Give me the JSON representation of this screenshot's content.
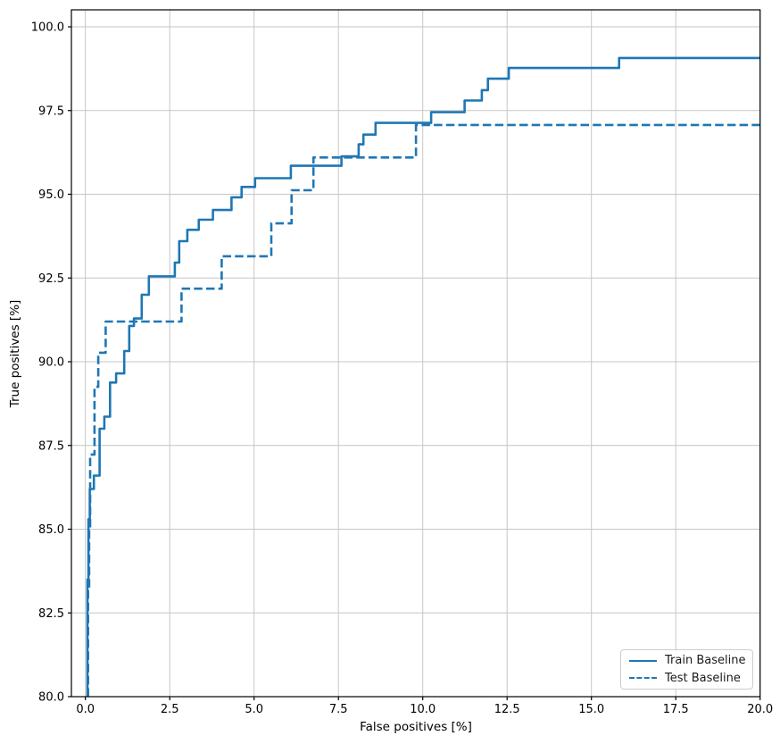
{
  "figure": {
    "background": "#ffffff"
  },
  "colors": {
    "line": "#1f77b4",
    "grid": "#c6c6c6",
    "spine": "#000000",
    "tick_text": "#000000",
    "legend_border": "#cccccc"
  },
  "chart_data": {
    "type": "line",
    "subtype": "step-roc",
    "title": "",
    "xlabel": "False positives [%]",
    "ylabel": "True positives [%]",
    "xlim": [
      -0.42,
      20.0
    ],
    "ylim": [
      80.0,
      100.5
    ],
    "grid": true,
    "legend_location": "lower right",
    "x_tick_values": [
      0,
      2.5,
      5,
      7.5,
      10,
      12.5,
      15,
      17.5,
      20
    ],
    "x_tick_labels": [
      "0.0",
      "2.5",
      "5.0",
      "7.5",
      "10.0",
      "12.5",
      "15.0",
      "17.5",
      "20.0"
    ],
    "y_tick_values": [
      80,
      82.5,
      85,
      87.5,
      90,
      92.5,
      95,
      97.5,
      100
    ],
    "y_tick_labels": [
      "80.0",
      "82.5",
      "85.0",
      "87.5",
      "90.0",
      "92.5",
      "95.0",
      "97.5",
      "100.0"
    ],
    "series": [
      {
        "name": "Train Baseline",
        "style": "solid",
        "color": "#1f77b4",
        "points": [
          [
            0.06,
            80.0
          ],
          [
            0.06,
            83.5
          ],
          [
            0.09,
            83.5
          ],
          [
            0.09,
            85.3
          ],
          [
            0.13,
            85.3
          ],
          [
            0.13,
            86.2
          ],
          [
            0.25,
            86.2
          ],
          [
            0.25,
            86.6
          ],
          [
            0.42,
            86.6
          ],
          [
            0.42,
            88.0
          ],
          [
            0.56,
            88.0
          ],
          [
            0.56,
            88.36
          ],
          [
            0.73,
            88.36
          ],
          [
            0.73,
            89.38
          ],
          [
            0.91,
            89.38
          ],
          [
            0.91,
            89.65
          ],
          [
            1.15,
            89.65
          ],
          [
            1.15,
            90.32
          ],
          [
            1.3,
            90.32
          ],
          [
            1.3,
            91.07
          ],
          [
            1.44,
            91.07
          ],
          [
            1.44,
            91.29
          ],
          [
            1.67,
            91.29
          ],
          [
            1.67,
            92.0
          ],
          [
            1.88,
            92.0
          ],
          [
            1.88,
            92.55
          ],
          [
            2.65,
            92.55
          ],
          [
            2.65,
            92.96
          ],
          [
            2.78,
            92.96
          ],
          [
            2.78,
            93.6
          ],
          [
            3.02,
            93.6
          ],
          [
            3.02,
            93.94
          ],
          [
            3.36,
            93.94
          ],
          [
            3.36,
            94.24
          ],
          [
            3.78,
            94.24
          ],
          [
            3.78,
            94.53
          ],
          [
            4.33,
            94.53
          ],
          [
            4.33,
            94.91
          ],
          [
            4.63,
            94.91
          ],
          [
            4.63,
            95.22
          ],
          [
            5.03,
            95.22
          ],
          [
            5.03,
            95.48
          ],
          [
            6.09,
            95.48
          ],
          [
            6.09,
            95.85
          ],
          [
            7.59,
            95.85
          ],
          [
            7.59,
            96.13
          ],
          [
            8.1,
            96.13
          ],
          [
            8.1,
            96.49
          ],
          [
            8.24,
            96.49
          ],
          [
            8.24,
            96.78
          ],
          [
            8.6,
            96.78
          ],
          [
            8.6,
            97.13
          ],
          [
            10.25,
            97.13
          ],
          [
            10.25,
            97.45
          ],
          [
            11.24,
            97.45
          ],
          [
            11.24,
            97.8
          ],
          [
            11.75,
            97.8
          ],
          [
            11.75,
            98.11
          ],
          [
            11.93,
            98.11
          ],
          [
            11.93,
            98.45
          ],
          [
            12.55,
            98.45
          ],
          [
            12.55,
            98.77
          ],
          [
            15.82,
            98.77
          ],
          [
            15.82,
            99.07
          ],
          [
            20.0,
            99.07
          ]
        ]
      },
      {
        "name": "Test Baseline",
        "style": "dashed",
        "color": "#1f77b4",
        "points": [
          [
            0.08,
            80.0
          ],
          [
            0.08,
            83.2
          ],
          [
            0.11,
            83.2
          ],
          [
            0.11,
            85.0
          ],
          [
            0.14,
            85.0
          ],
          [
            0.14,
            87.23
          ],
          [
            0.27,
            87.23
          ],
          [
            0.27,
            89.25
          ],
          [
            0.38,
            89.25
          ],
          [
            0.38,
            90.27
          ],
          [
            0.6,
            90.27
          ],
          [
            0.6,
            91.2
          ],
          [
            2.85,
            91.2
          ],
          [
            2.85,
            92.18
          ],
          [
            4.04,
            92.18
          ],
          [
            4.04,
            93.15
          ],
          [
            5.51,
            93.15
          ],
          [
            5.51,
            94.13
          ],
          [
            6.11,
            94.13
          ],
          [
            6.11,
            95.12
          ],
          [
            6.76,
            95.12
          ],
          [
            6.76,
            96.1
          ],
          [
            9.8,
            96.1
          ],
          [
            9.8,
            97.07
          ],
          [
            20.0,
            97.07
          ]
        ]
      }
    ]
  },
  "legend": {
    "items": [
      {
        "label": "Train Baseline",
        "style": "solid"
      },
      {
        "label": "Test Baseline",
        "style": "dashed"
      }
    ]
  }
}
